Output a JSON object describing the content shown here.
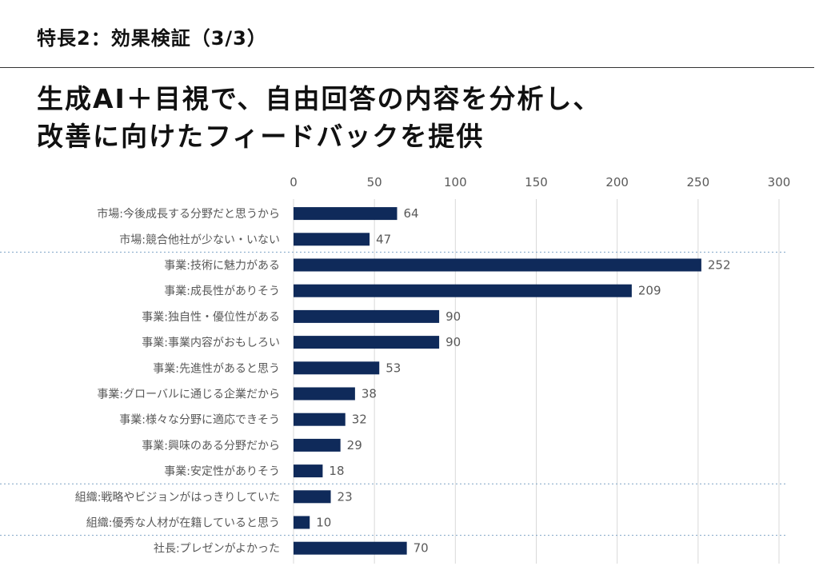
{
  "header": {
    "section_title": "特長2：効果検証（3/3）",
    "headline_line1": "生成AI＋目視で、自由回答の内容を分析し、",
    "headline_line2": "改善に向けたフィードバックを提供"
  },
  "colors": {
    "bar": "#0f2a5a",
    "grid": "#d9d9d9",
    "separator": "#7fa3c6",
    "label": "#595959"
  },
  "chart_data": {
    "type": "bar",
    "orientation": "horizontal",
    "title": "",
    "xlabel": "",
    "ylabel": "",
    "xlim": [
      0,
      300
    ],
    "x_ticks": [
      0,
      50,
      100,
      150,
      200,
      250,
      300
    ],
    "x_axis_position": "top",
    "grid": true,
    "legend": "none",
    "categories": [
      "市場:今後成長する分野だと思うから",
      "市場:競合他社が少ない・いない",
      "事業:技術に魅力がある",
      "事業:成長性がありそう",
      "事業:独自性・優位性がある",
      "事業:事業内容がおもしろい",
      "事業:先進性があると思う",
      "事業:グローバルに通じる企業だから",
      "事業:様々な分野に適応できそう",
      "事業:興味のある分野だから",
      "事業:安定性がありそう",
      "組織:戦略やビジョンがはっきりしていた",
      "組織:優秀な人材が在籍していると思う",
      "社長:プレゼンがよかった"
    ],
    "values": [
      64,
      47,
      252,
      209,
      90,
      90,
      53,
      38,
      32,
      29,
      18,
      23,
      10,
      70
    ],
    "group_separators_after_index": [
      1,
      10,
      12
    ]
  }
}
